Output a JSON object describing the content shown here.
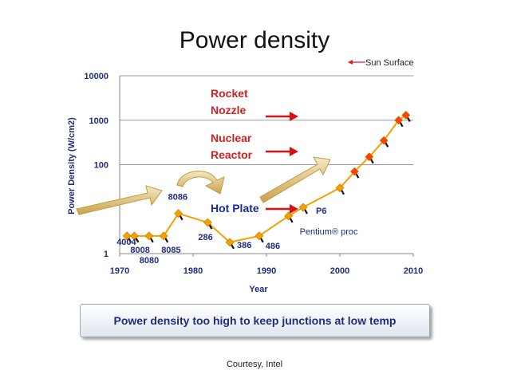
{
  "slide": {
    "title": "Power density",
    "banner": "Power density too high to keep junctions at low temp",
    "credit": "Courtesy, Intel"
  },
  "chart_data": {
    "type": "line",
    "title": "Power density",
    "xlabel": "Year",
    "ylabel": "Power Density (W/cm2)",
    "xlim": [
      1970,
      2010
    ],
    "ylim": [
      1,
      10000
    ],
    "y_scale": "log",
    "x_ticks": [
      "1970",
      "1980",
      "1990",
      "2000",
      "2010"
    ],
    "y_ticks": [
      "1",
      "100",
      "1000",
      "10000"
    ],
    "grid": "horizontal",
    "legend": {
      "label": "Sun Surface",
      "placement": "top-right"
    },
    "series": [
      {
        "color": "#f5a000",
        "points": [
          {
            "x": 1971,
            "y": 2.5,
            "label": "4004"
          },
          {
            "x": 1972,
            "y": 2.5,
            "label": "8008"
          },
          {
            "x": 1974,
            "y": 2.5,
            "label": "8080"
          },
          {
            "x": 1976,
            "y": 2.5,
            "label": "8085"
          },
          {
            "x": 1978,
            "y": 8,
            "label": "8086"
          },
          {
            "x": 1982,
            "y": 5,
            "label": "286"
          },
          {
            "x": 1985,
            "y": 1.8,
            "label": "386"
          },
          {
            "x": 1989,
            "y": 2.5,
            "label": "486"
          },
          {
            "x": 1993,
            "y": 7,
            "label": "Pentium® proc"
          },
          {
            "x": 1995,
            "y": 11,
            "label": "P6"
          },
          {
            "x": 2000,
            "y": 30,
            "label": ""
          }
        ]
      },
      {
        "color": "#f5a000",
        "marker_color": "#ff4000",
        "points": [
          {
            "x": 2000,
            "y": 30
          },
          {
            "x": 2002,
            "y": 70
          },
          {
            "x": 2004,
            "y": 150
          },
          {
            "x": 2006,
            "y": 350
          },
          {
            "x": 2008,
            "y": 1000
          },
          {
            "x": 2009,
            "y": 1300
          }
        ]
      }
    ],
    "annotations": [
      {
        "text": "Rocket",
        "color": "#d32020"
      },
      {
        "text": "Nozzle",
        "color": "#d32020"
      },
      {
        "text": "Nuclear",
        "color": "#d32020"
      },
      {
        "text": "Reactor",
        "color": "#d32020"
      },
      {
        "text": "Hot Plate",
        "color": "#1a2a9a"
      }
    ]
  }
}
